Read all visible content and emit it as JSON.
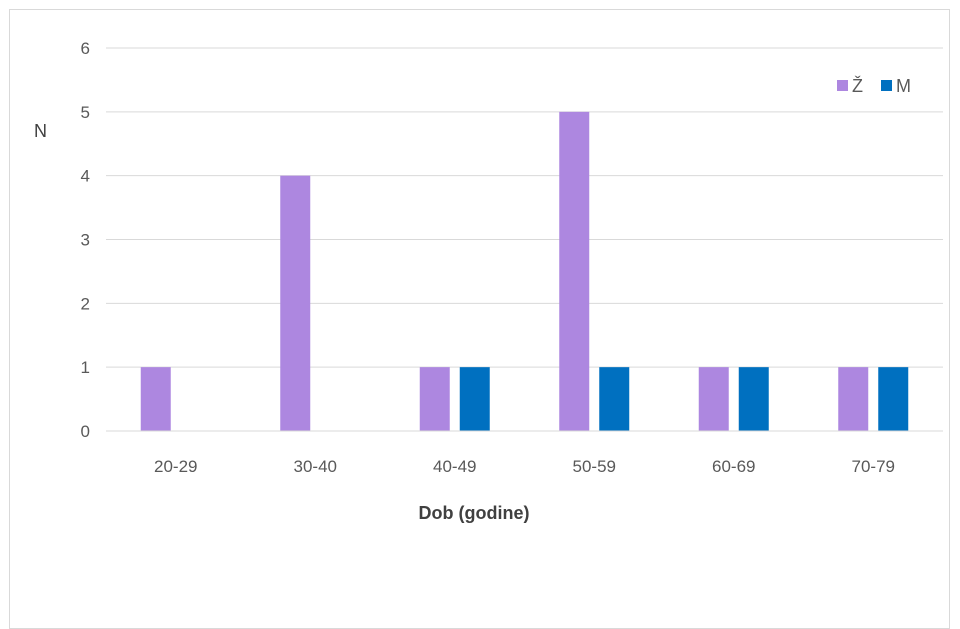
{
  "chart_data": {
    "type": "bar",
    "categories": [
      "20-29",
      "30-40",
      "40-49",
      "50-59",
      "60-69",
      "70-79"
    ],
    "series": [
      {
        "name": "Ž",
        "values": [
          1,
          4,
          1,
          5,
          1,
          1
        ],
        "color": "#ad87e0"
      },
      {
        "name": "M",
        "values": [
          0,
          0,
          1,
          1,
          1,
          1
        ],
        "color": "#0070c0"
      }
    ],
    "xlabel": "Dob (godine)",
    "ylabel": "N",
    "ylim": [
      0,
      6
    ],
    "yticks": [
      "0",
      "1",
      "2",
      "3",
      "4",
      "5",
      "6"
    ],
    "grid": true,
    "legend_position": "top-right"
  }
}
